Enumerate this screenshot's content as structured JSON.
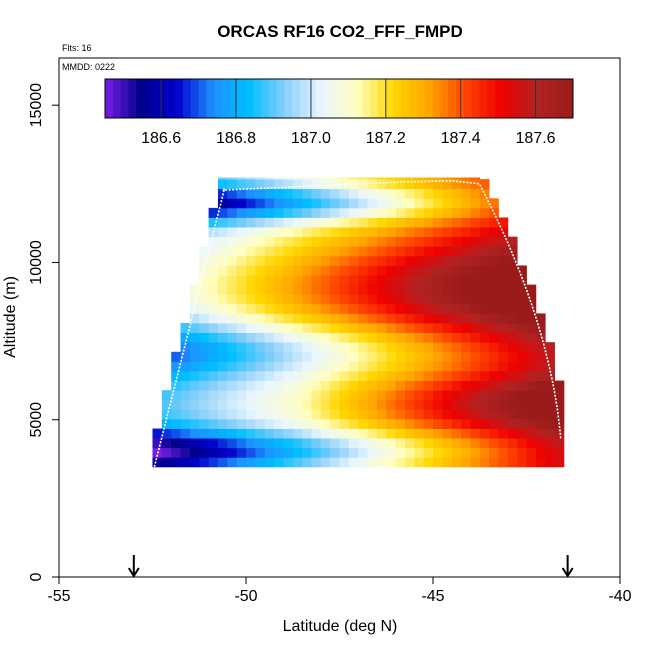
{
  "chart_data": {
    "type": "heatmap",
    "title": "ORCAS RF16 CO2_FFF_FMPD",
    "annotations": {
      "flights": "Flts: 16",
      "date": "MMDD: 0222"
    },
    "xlabel": "Latitude (deg N)",
    "ylabel": "Altitude (m)",
    "xlim": [
      -55,
      -40
    ],
    "ylim": [
      0,
      16500
    ],
    "x_ticks": [
      -55,
      -50,
      -45,
      -40
    ],
    "x_tick_labels": [
      "-55",
      "-50",
      "-45",
      "-40"
    ],
    "y_ticks": [
      0,
      5000,
      10000,
      15000
    ],
    "y_tick_labels": [
      "0",
      "5000",
      "10000",
      "15000"
    ],
    "colorbar": {
      "range": [
        186.45,
        187.7
      ],
      "ticks": [
        186.6,
        186.8,
        187.0,
        187.2,
        187.4,
        187.6
      ],
      "tick_labels": [
        "186.6",
        "186.8",
        "187.0",
        "187.2",
        "187.4",
        "187.6"
      ],
      "colors": [
        "#7a1ee6",
        "#00008b",
        "#0000cd",
        "#1e90ff",
        "#00bfff",
        "#87cefa",
        "#eaf6ff",
        "#ffffc0",
        "#ffd700",
        "#ffa500",
        "#ff4500",
        "#ee0000",
        "#b22222",
        "#9b1b1b"
      ]
    },
    "field": {
      "lat_min": -52.5,
      "lat_max": -41.5,
      "alt_min": 3500,
      "alt_max": 12700,
      "cell_lat": 0.25,
      "cell_alt": 305
    },
    "markers": [
      {
        "name": "arrow-left",
        "lat": -53.0
      },
      {
        "name": "arrow-right",
        "lat": -41.4
      }
    ]
  }
}
